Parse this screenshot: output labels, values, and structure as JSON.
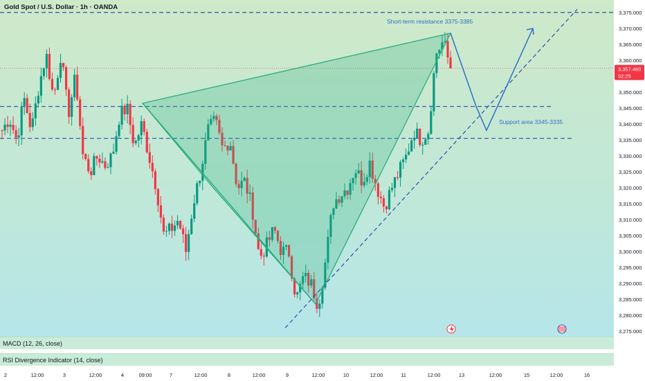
{
  "header": {
    "title": "Gold Spot / U.S. Dollar · 1h · OANDA"
  },
  "indicators": {
    "macd": "MACD (12, 26, close)",
    "rsi": "RSI Divergence Indicator (14, close)"
  },
  "price_badge": {
    "price": "3,357.460",
    "countdown": "52:25"
  },
  "annotations": {
    "resistance": "Short-term resistance 3375-3385",
    "support": "Support area 3345-3335"
  },
  "colors": {
    "up": "#089981",
    "down": "#f23645",
    "pattern": "#2bae7e",
    "projection": "#2f6fc9",
    "badge": "#f23645"
  },
  "icons": {
    "event_1": "lightning-event-icon",
    "event_2": "us-flag-event-icon"
  },
  "chart_data": {
    "type": "candlestick",
    "symbol": "XAUUSD",
    "timeframe": "1h",
    "ylim": [
      3272,
      3379
    ],
    "yticks": [
      3275,
      3280,
      3285,
      3290,
      3295,
      3300,
      3305,
      3310,
      3315,
      3320,
      3325,
      3330,
      3335,
      3340,
      3345,
      3350,
      3355,
      3360,
      3365,
      3370,
      3375
    ],
    "ytick_labels": [
      "3,275.000",
      "3,280.000",
      "3,285.000",
      "3,290.000",
      "3,295.000",
      "3,300.000",
      "3,305.000",
      "3,310.000",
      "3,315.000",
      "3,320.000",
      "3,325.000",
      "3,330.000",
      "3,335.000",
      "3,340.000",
      "3,345.000",
      "3,350.000",
      "3,355.000",
      "3,360.000",
      "3,365.000",
      "3,370.000",
      "3,375.000"
    ],
    "xtick_labels": [
      "2",
      "12:00",
      "3",
      "12:00",
      "4",
      "09:00",
      "7",
      "12:00",
      "8",
      "12:00",
      "9",
      "12:00",
      "10",
      "12:00",
      "11",
      "12:00",
      "13",
      "12:00",
      "15",
      "12:00",
      "16"
    ],
    "current_price": 3357.46,
    "horizontal_levels": [
      3375,
      3345.5,
      3335.5
    ],
    "key_points": {
      "left_top": 3346.5,
      "bottom": 3283.5,
      "right_top": 3368.5
    },
    "projection_path": [
      3368.5,
      3345.5,
      3338,
      3370
    ],
    "trendline": [
      3276,
      3376
    ],
    "candle_keyframes": [
      3338,
      3342,
      3335,
      3348,
      3338,
      3352,
      3362,
      3348,
      3362,
      3343,
      3355,
      3330,
      3325,
      3330,
      3327,
      3330,
      3343,
      3345,
      3333,
      3340,
      3330,
      3320,
      3305,
      3307,
      3310,
      3300,
      3315,
      3325,
      3338,
      3341,
      3332,
      3335,
      3320,
      3322,
      3314,
      3298,
      3302,
      3307,
      3300,
      3300,
      3285,
      3292,
      3290,
      3283,
      3297,
      3315,
      3318,
      3320,
      3326,
      3322,
      3328,
      3320,
      3314,
      3320,
      3325,
      3330,
      3338,
      3335,
      3338,
      3362,
      3366,
      3357.5
    ]
  }
}
